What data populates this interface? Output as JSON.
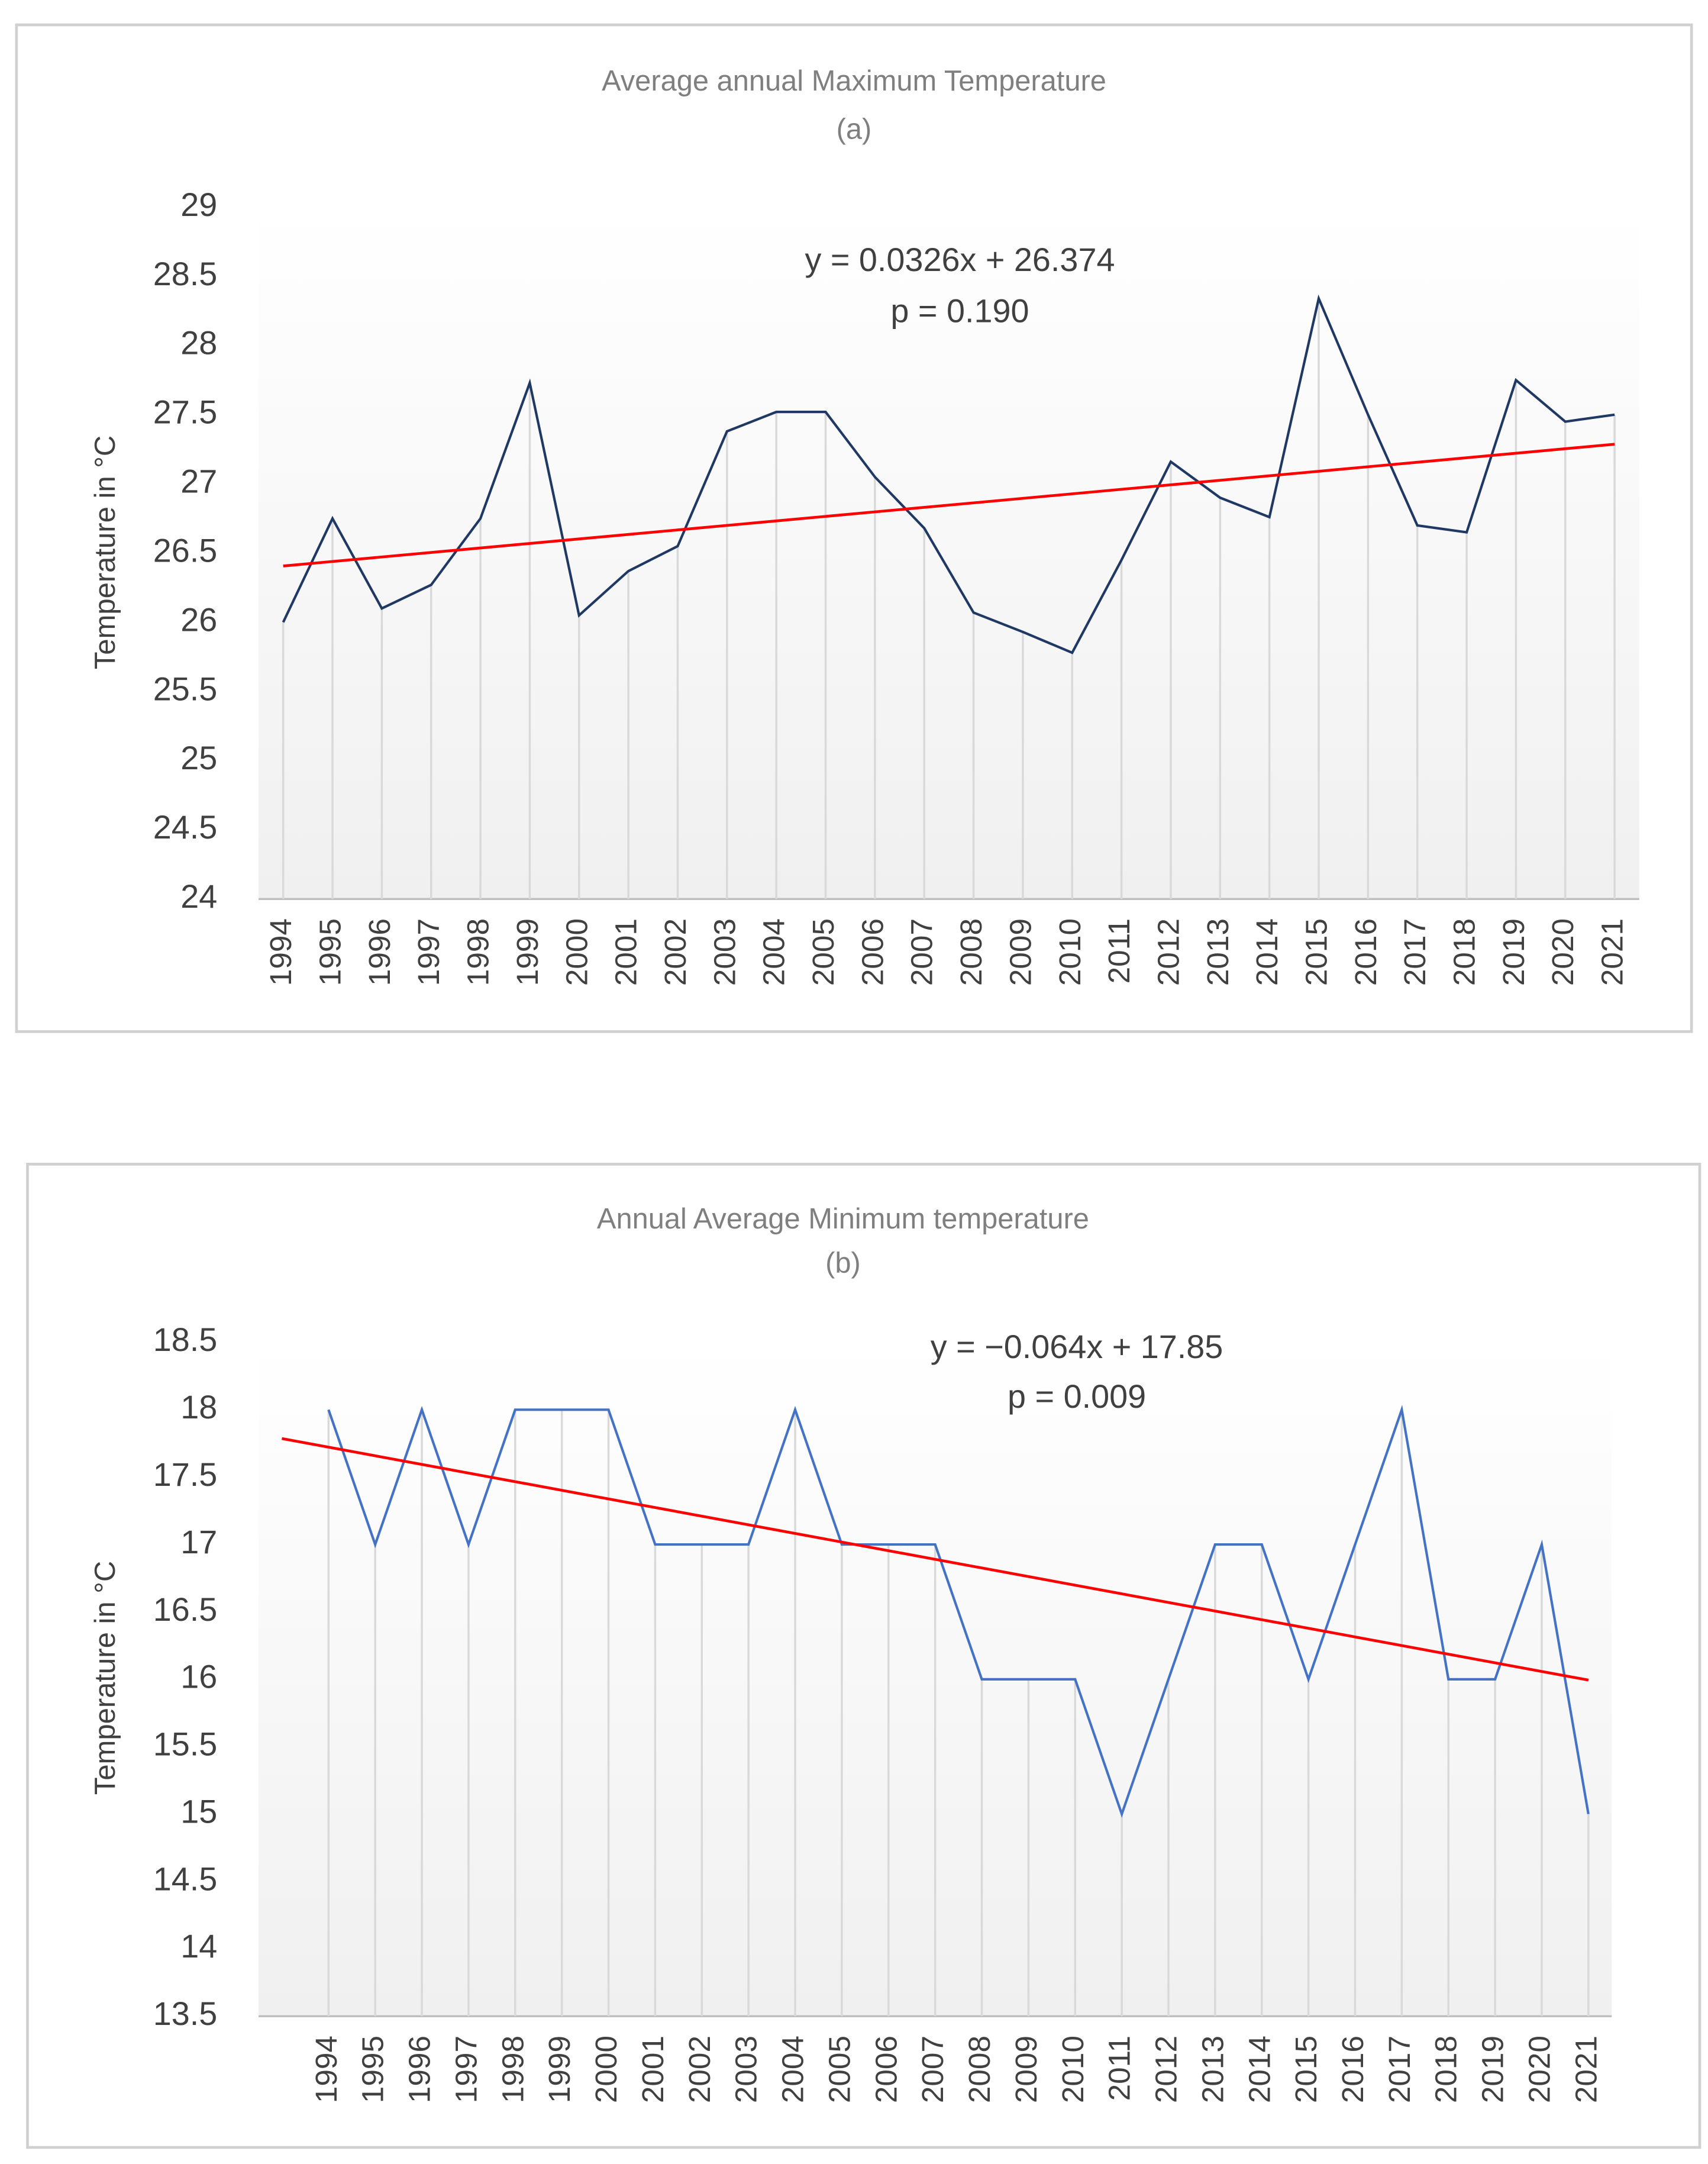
{
  "chart_data": [
    {
      "type": "line",
      "title": "Average annual Maximum Temperature",
      "subtitle": "(a)",
      "ylabel": "Temperature in °C",
      "categories": [
        "1994",
        "1995",
        "1996",
        "1997",
        "1998",
        "1999",
        "2000",
        "2001",
        "2002",
        "2003",
        "2004",
        "2005",
        "2006",
        "2007",
        "2008",
        "2009",
        "2010",
        "2011",
        "2012",
        "2013",
        "2014",
        "2015",
        "2016",
        "2017",
        "2018",
        "2019",
        "2020",
        "2021"
      ],
      "series": [
        {
          "color": "#1f3864",
          "values": [
            26.0,
            26.75,
            26.1,
            26.27,
            26.75,
            27.73,
            26.05,
            26.37,
            26.55,
            27.38,
            27.52,
            27.52,
            27.05,
            26.68,
            26.07,
            25.93,
            25.78,
            26.45,
            27.16,
            26.9,
            26.76,
            28.34,
            27.5,
            26.7,
            26.65,
            27.75,
            27.45,
            27.5
          ]
        }
      ],
      "trendline": {
        "slope": 0.0326,
        "intercept": 26.374,
        "color": "#ff0000",
        "label": "y = 0.0326x + 26.374",
        "p_label": "p = 0.190"
      },
      "ylim": [
        24,
        29
      ],
      "yticks": [
        24,
        24.5,
        25,
        25.5,
        26,
        26.5,
        27,
        27.5,
        28,
        28.5,
        29
      ]
    },
    {
      "type": "line",
      "title": "Annual Average Minimum temperature",
      "subtitle": "(b)",
      "ylabel": "Temperature in °C",
      "categories": [
        null,
        "1994",
        "1995",
        "1996",
        "1997",
        "1998",
        "1999",
        "2000",
        "2001",
        "2002",
        "2003",
        "2004",
        "2005",
        "2006",
        "2007",
        "2008",
        "2009",
        "2010",
        "2011",
        "2012",
        "2013",
        "2014",
        "2015",
        "2016",
        "2017",
        "2018",
        "2019",
        "2020",
        "2021"
      ],
      "series": [
        {
          "color": "#4472c4",
          "values": [
            null,
            18,
            17,
            18,
            17,
            18,
            18,
            18,
            17,
            17,
            17,
            18,
            17,
            17,
            17,
            16,
            16,
            16,
            15,
            16,
            17,
            17,
            16,
            17,
            18,
            16,
            16,
            17,
            15
          ]
        }
      ],
      "trendline": {
        "slope": -0.064,
        "intercept": 17.85,
        "color": "#ff0000",
        "label": "y = −0.064x + 17.85",
        "p_label": "p = 0.009"
      },
      "ylim": [
        13.5,
        18.5
      ],
      "yticks": [
        13.5,
        14,
        14.5,
        15,
        15.5,
        16,
        16.5,
        17,
        17.5,
        18,
        18.5
      ]
    }
  ]
}
